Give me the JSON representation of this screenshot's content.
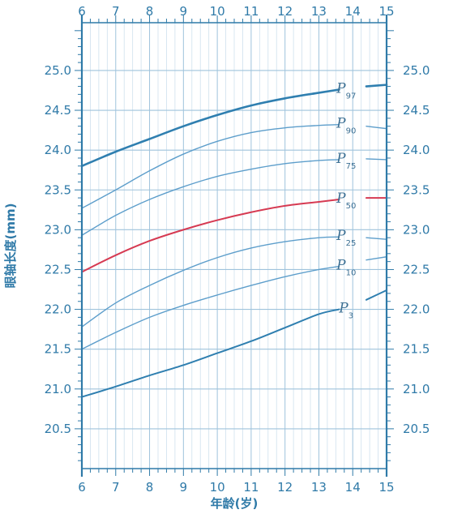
{
  "chart_data": {
    "type": "line",
    "title": "",
    "xlabel": "年龄(岁)",
    "ylabel": "眼轴长度(mm)",
    "xlim": [
      6,
      15
    ],
    "ylim": [
      20.0,
      25.6
    ],
    "x_ticks": [
      "6",
      "7",
      "8",
      "9",
      "10",
      "11",
      "12",
      "13",
      "14",
      "15"
    ],
    "y_ticks": [
      "20.5",
      "21.0",
      "21.5",
      "22.0",
      "22.5",
      "23.0",
      "23.5",
      "24.0",
      "24.5",
      "25.0"
    ],
    "grid": true,
    "legend": "inline-right",
    "series": [
      {
        "name": "P97",
        "label_main": "P",
        "label_sub": "97",
        "color": "#2f7fb0",
        "width": 2.6,
        "x": [
          6,
          7,
          8,
          9,
          10,
          11,
          12,
          13,
          13.6
        ],
        "y": [
          23.8,
          23.98,
          24.14,
          24.3,
          24.44,
          24.56,
          24.65,
          24.72,
          24.76
        ],
        "tail_x": [
          14.4,
          15
        ],
        "tail_y": [
          24.8,
          24.82
        ]
      },
      {
        "name": "P90",
        "label_main": "P",
        "label_sub": "90",
        "color": "#5d9ecb",
        "width": 1.4,
        "x": [
          6,
          7,
          8,
          9,
          10,
          11,
          12,
          13,
          13.6
        ],
        "y": [
          23.27,
          23.5,
          23.74,
          23.95,
          24.11,
          24.22,
          24.28,
          24.31,
          24.32
        ],
        "tail_x": [
          14.4,
          15
        ],
        "tail_y": [
          24.3,
          24.27
        ]
      },
      {
        "name": "P75",
        "label_main": "P",
        "label_sub": "75",
        "color": "#5d9ecb",
        "width": 1.4,
        "x": [
          6,
          7,
          8,
          9,
          10,
          11,
          12,
          13,
          13.6
        ],
        "y": [
          22.93,
          23.18,
          23.38,
          23.54,
          23.67,
          23.76,
          23.83,
          23.87,
          23.88
        ],
        "tail_x": [
          14.4,
          15
        ],
        "tail_y": [
          23.89,
          23.88
        ]
      },
      {
        "name": "P50",
        "label_main": "P",
        "label_sub": "50",
        "color": "#d63a52",
        "width": 2.0,
        "x": [
          6,
          7,
          8,
          9,
          10,
          11,
          12,
          13,
          13.6
        ],
        "y": [
          22.47,
          22.68,
          22.86,
          23.0,
          23.12,
          23.22,
          23.3,
          23.35,
          23.38
        ],
        "tail_x": [
          14.4,
          15
        ],
        "tail_y": [
          23.4,
          23.4
        ]
      },
      {
        "name": "P25",
        "label_main": "P",
        "label_sub": "25",
        "color": "#5d9ecb",
        "width": 1.4,
        "x": [
          6,
          7,
          8,
          9,
          10,
          11,
          12,
          13,
          13.6
        ],
        "y": [
          21.78,
          22.08,
          22.3,
          22.49,
          22.65,
          22.77,
          22.85,
          22.9,
          22.91
        ],
        "tail_x": [
          14.4,
          15
        ],
        "tail_y": [
          22.9,
          22.88
        ]
      },
      {
        "name": "P10",
        "label_main": "P",
        "label_sub": "10",
        "color": "#5d9ecb",
        "width": 1.4,
        "x": [
          6,
          7,
          8,
          9,
          10,
          11,
          12,
          13,
          13.6
        ],
        "y": [
          21.5,
          21.71,
          21.9,
          22.05,
          22.18,
          22.3,
          22.41,
          22.5,
          22.54
        ],
        "tail_x": [
          14.4,
          15
        ],
        "tail_y": [
          22.62,
          22.66
        ]
      },
      {
        "name": "P3",
        "label_main": "P",
        "label_sub": "3",
        "color": "#2f7fb0",
        "width": 2.0,
        "x": [
          6,
          7,
          8,
          9,
          10,
          11,
          12,
          13,
          13.6
        ],
        "y": [
          20.9,
          21.03,
          21.17,
          21.3,
          21.45,
          21.6,
          21.77,
          21.94,
          22.0
        ],
        "tail_x": [
          14.4,
          15
        ],
        "tail_y": [
          22.12,
          22.24
        ]
      }
    ],
    "colors": {
      "axis": "#2f7aa8",
      "grid": "#9fc3dc",
      "minor_grid": "#cfe1ee",
      "background": "#ffffff"
    }
  }
}
